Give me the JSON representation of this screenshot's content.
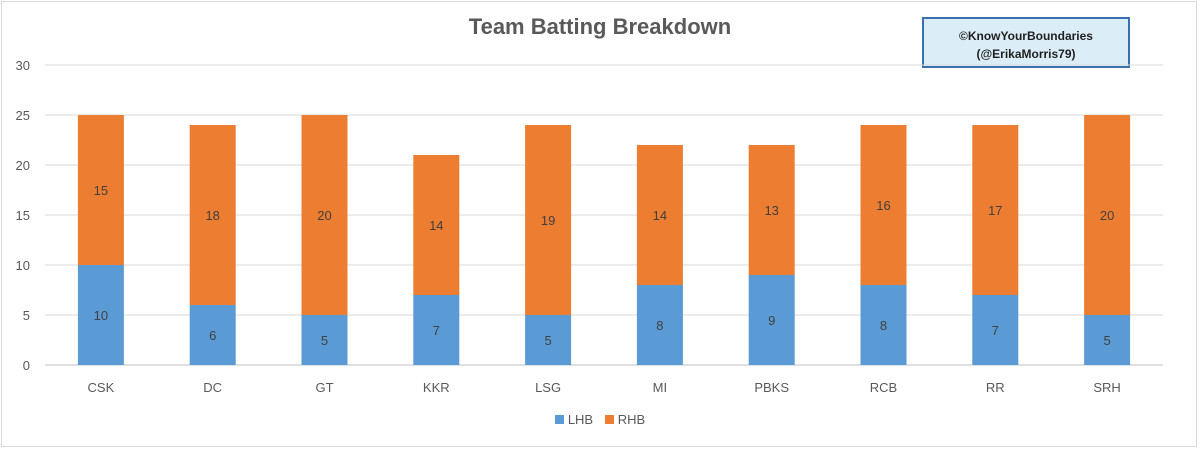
{
  "chart_data": {
    "type": "bar",
    "stacked": true,
    "title": "Team Batting Breakdown",
    "categories": [
      "CSK",
      "DC",
      "GT",
      "KKR",
      "LSG",
      "MI",
      "PBKS",
      "RCB",
      "RR",
      "SRH"
    ],
    "series": [
      {
        "name": "LHB",
        "color": "#5b9bd5",
        "values": [
          10,
          6,
          5,
          7,
          5,
          8,
          9,
          8,
          7,
          5
        ]
      },
      {
        "name": "RHB",
        "color": "#ed7d31",
        "values": [
          15,
          18,
          20,
          14,
          19,
          14,
          13,
          16,
          17,
          20
        ]
      }
    ],
    "ylim": [
      0,
      30
    ],
    "yticks": [
      0,
      5,
      10,
      15,
      20,
      25,
      30
    ],
    "grid": true,
    "legend_position": "bottom",
    "data_labels": true
  },
  "credit": {
    "line1": "©KnowYourBoundaries",
    "line2": "(@ErikaMorris79)"
  }
}
